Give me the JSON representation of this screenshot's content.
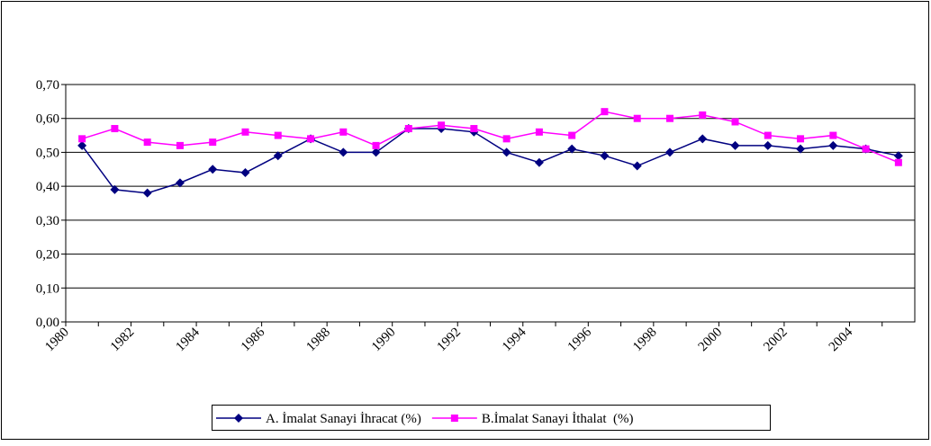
{
  "chart_data": {
    "type": "line",
    "categories": [
      "1980",
      null,
      "1982",
      null,
      "1984",
      null,
      "1986",
      null,
      "1988",
      null,
      "1990",
      null,
      "1992",
      null,
      "1994",
      null,
      "1996",
      null,
      "1998",
      null,
      "2000",
      null,
      "2002",
      null,
      "2004",
      null
    ],
    "series": [
      {
        "name": "A. İmalat Sanayi İhracat (%)",
        "color": "#000080",
        "marker": "diamond",
        "values": [
          0.52,
          0.39,
          0.38,
          0.41,
          0.45,
          0.44,
          0.49,
          0.54,
          0.5,
          0.5,
          0.57,
          0.57,
          0.56,
          0.5,
          0.47,
          0.51,
          0.49,
          0.46,
          0.5,
          0.54,
          0.52,
          0.52,
          0.51,
          0.52,
          0.51,
          0.49
        ]
      },
      {
        "name": "B.İmalat Sanayi İthalat  (%)",
        "color": "#ff00ff",
        "marker": "square",
        "values": [
          0.54,
          0.57,
          0.53,
          0.52,
          0.53,
          0.56,
          0.55,
          0.54,
          0.56,
          0.52,
          0.57,
          0.58,
          0.57,
          0.54,
          0.56,
          0.55,
          0.62,
          0.6,
          0.6,
          0.61,
          0.59,
          0.55,
          0.54,
          0.55,
          0.51,
          0.47
        ]
      }
    ],
    "ylim": [
      0,
      0.7
    ],
    "yticks": [
      {
        "value": 0,
        "label": "0,00"
      },
      {
        "value": 0.1,
        "label": "0,10"
      },
      {
        "value": 0.2,
        "label": "0,20"
      },
      {
        "value": 0.3,
        "label": "0,30"
      },
      {
        "value": 0.4,
        "label": "0,40"
      },
      {
        "value": 0.5,
        "label": "0,50"
      },
      {
        "value": 0.6,
        "label": "0,60"
      },
      {
        "value": 0.7,
        "label": "0,70"
      }
    ],
    "grid": true,
    "legend": "bottom"
  }
}
